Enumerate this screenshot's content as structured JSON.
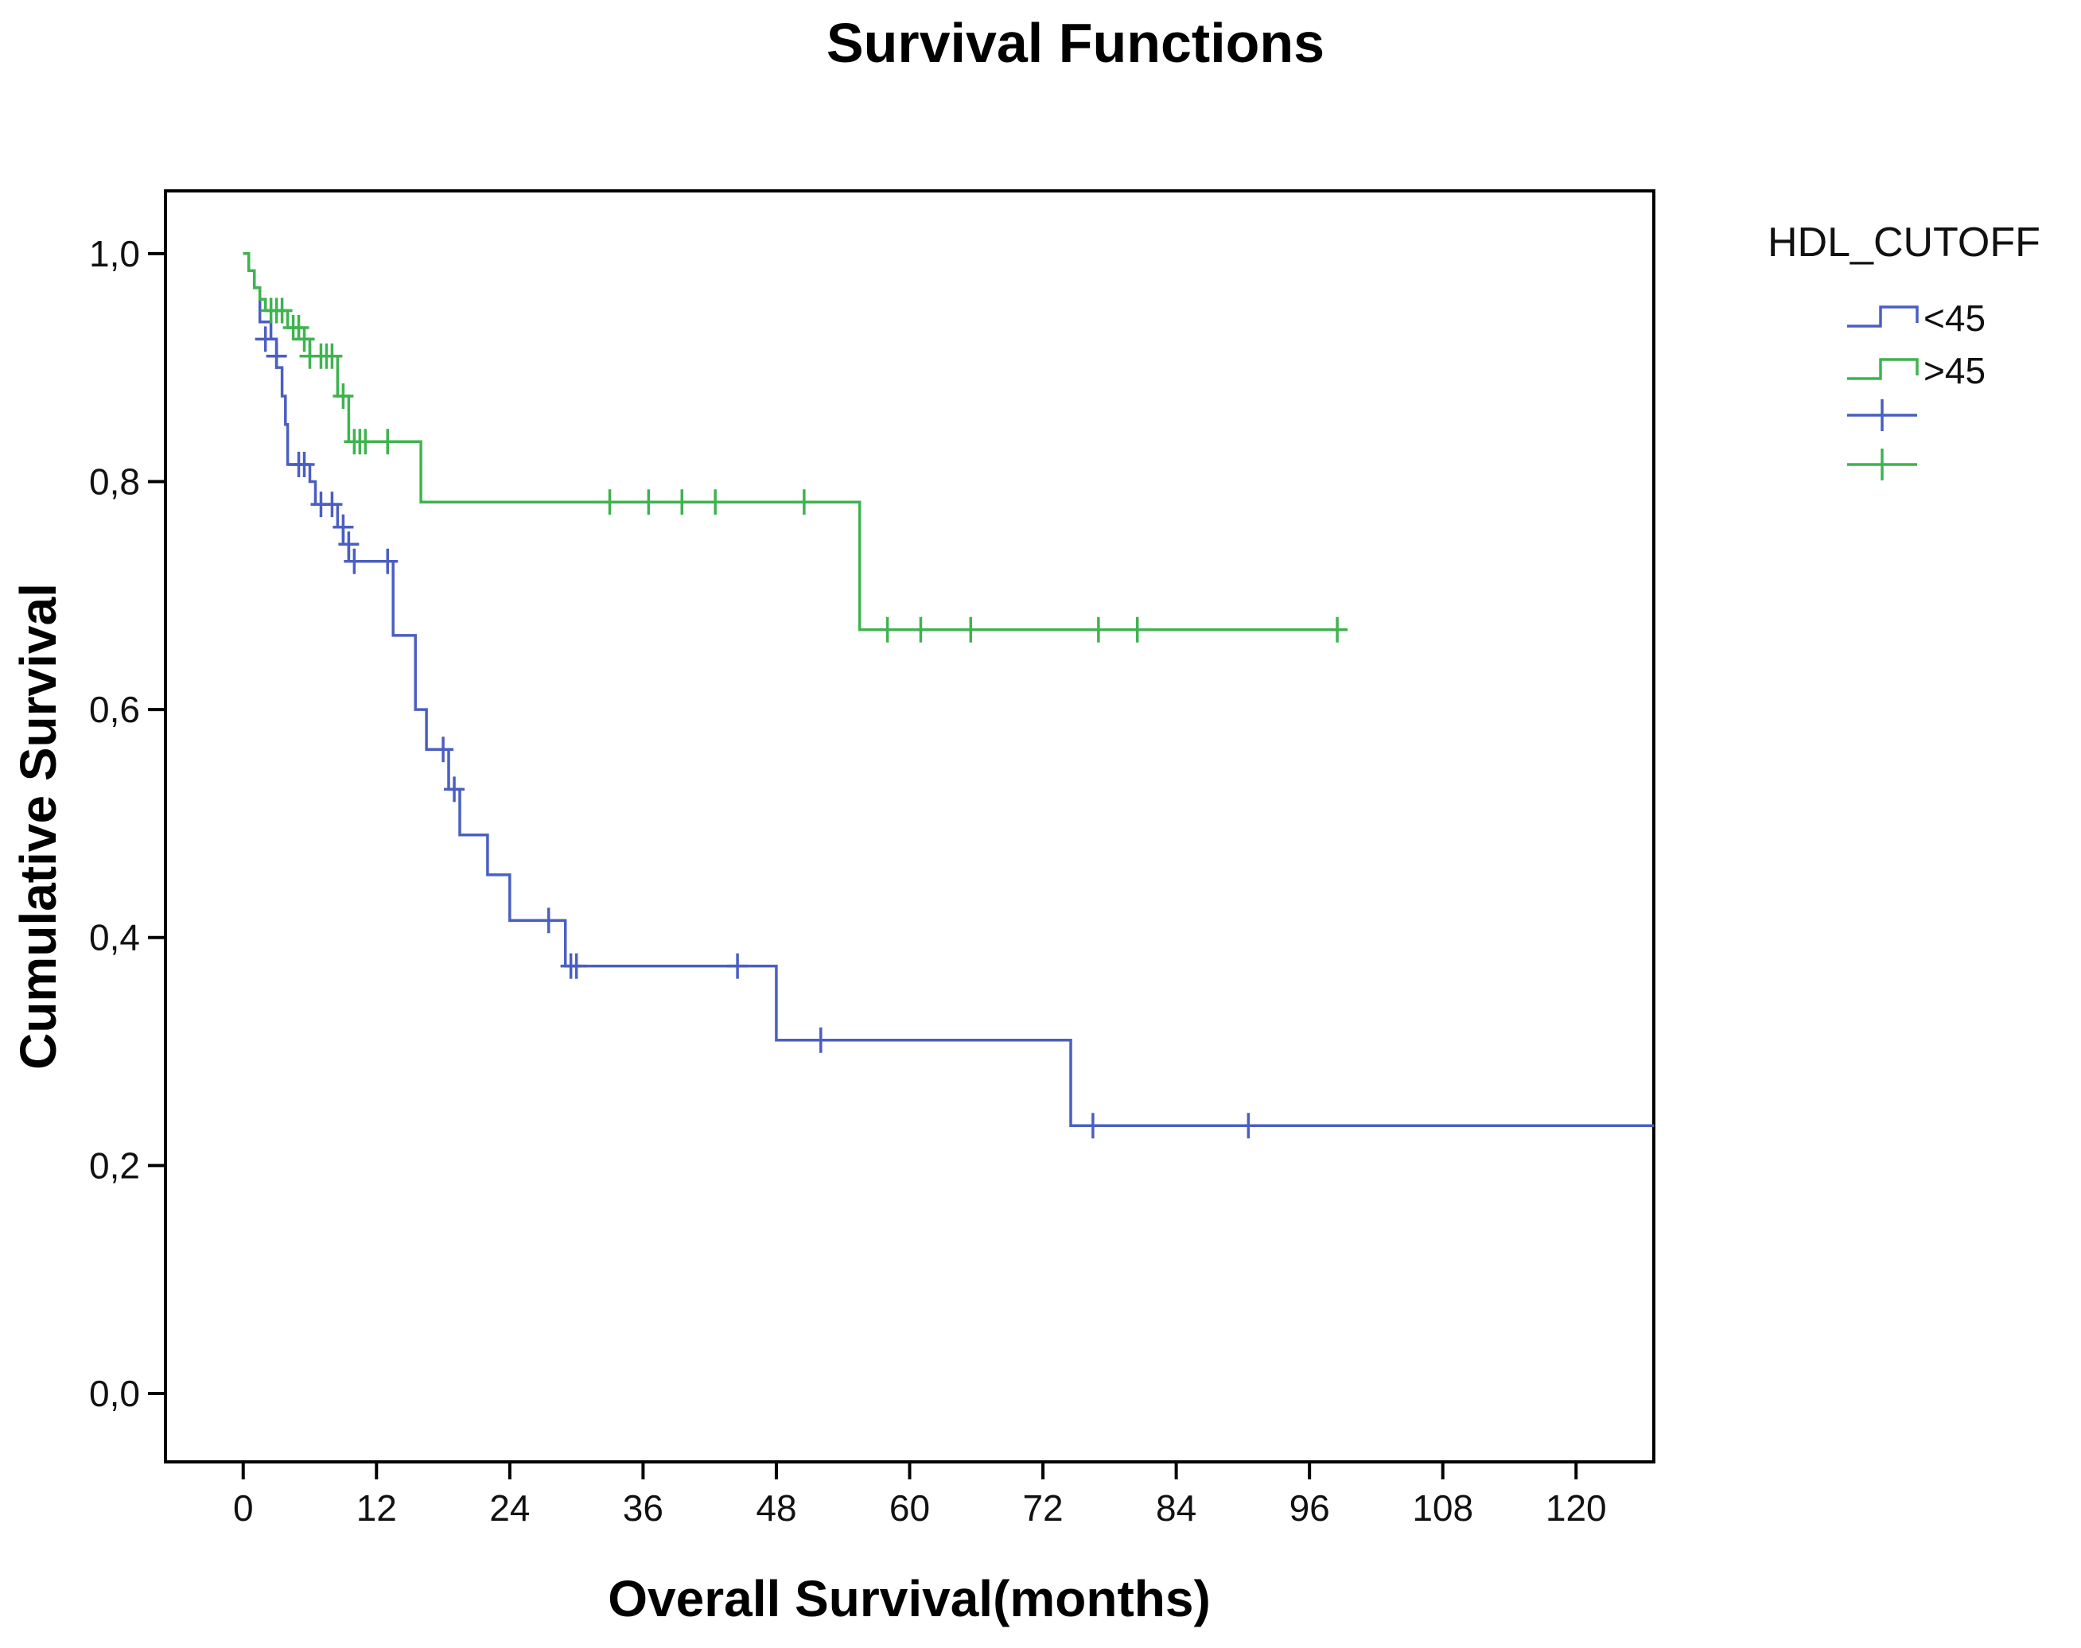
{
  "chart_data": {
    "type": "line",
    "subtype": "kaplan-meier-step",
    "title": "Survival Functions",
    "xlabel": "Overall Survival(months)",
    "ylabel": "Cumulative Survival",
    "xlim": [
      -7,
      127
    ],
    "ylim": [
      -0.06,
      1.055
    ],
    "xticks": [
      0,
      12,
      24,
      36,
      48,
      60,
      72,
      84,
      96,
      108,
      120
    ],
    "xtick_labels": [
      "0",
      "12",
      "24",
      "36",
      "48",
      "60",
      "72",
      "84",
      "96",
      "108",
      "120"
    ],
    "yticks": [
      0.0,
      0.2,
      0.4,
      0.6,
      0.8,
      1.0
    ],
    "ytick_labels": [
      "0,0",
      "0,2",
      "0,4",
      "0,6",
      "0,8",
      "1,0"
    ],
    "grid": false,
    "legend": {
      "title": "HDL_CUTOFF",
      "placement": "right",
      "entries": [
        {
          "label": "<45",
          "symbol": "step-line",
          "color": "#4a5fc1"
        },
        {
          "label": ">45",
          "symbol": "step-line",
          "color": "#3fb34f"
        },
        {
          "label": "",
          "symbol": "censor-mark",
          "color": "#4a5fc1"
        },
        {
          "label": "",
          "symbol": "censor-mark",
          "color": "#3fb34f"
        }
      ]
    },
    "series": [
      {
        "name": "<45",
        "color": "#4a5fc1",
        "steps": [
          [
            0,
            1.0
          ],
          [
            0.5,
            0.985
          ],
          [
            1.0,
            0.97
          ],
          [
            1.5,
            0.94
          ],
          [
            2.5,
            0.925
          ],
          [
            3.0,
            0.9
          ],
          [
            3.5,
            0.875
          ],
          [
            3.8,
            0.85
          ],
          [
            4.0,
            0.815
          ],
          [
            6.0,
            0.8
          ],
          [
            6.5,
            0.78
          ],
          [
            8.5,
            0.76
          ],
          [
            9.0,
            0.745
          ],
          [
            9.5,
            0.73
          ],
          [
            13.5,
            0.665
          ],
          [
            15.5,
            0.6
          ],
          [
            16.5,
            0.565
          ],
          [
            18.5,
            0.53
          ],
          [
            19.5,
            0.49
          ],
          [
            22.0,
            0.455
          ],
          [
            24.0,
            0.415
          ],
          [
            29.0,
            0.375
          ],
          [
            48.0,
            0.31
          ],
          [
            74.5,
            0.235
          ],
          [
            127,
            0.235
          ]
        ],
        "censored": [
          [
            2.0,
            0.925
          ],
          [
            3.0,
            0.91
          ],
          [
            5.0,
            0.815
          ],
          [
            5.5,
            0.815
          ],
          [
            7.0,
            0.78
          ],
          [
            8.0,
            0.78
          ],
          [
            9.0,
            0.76
          ],
          [
            9.5,
            0.745
          ],
          [
            10.0,
            0.73
          ],
          [
            13.0,
            0.73
          ],
          [
            18.0,
            0.565
          ],
          [
            19.0,
            0.53
          ],
          [
            27.5,
            0.415
          ],
          [
            29.5,
            0.375
          ],
          [
            30.0,
            0.375
          ],
          [
            44.5,
            0.375
          ],
          [
            52.0,
            0.31
          ],
          [
            76.5,
            0.235
          ],
          [
            90.5,
            0.235
          ]
        ]
      },
      {
        "name": ">45",
        "color": "#3fb34f",
        "steps": [
          [
            0,
            1.0
          ],
          [
            0.5,
            0.985
          ],
          [
            1.0,
            0.97
          ],
          [
            1.5,
            0.96
          ],
          [
            2.0,
            0.95
          ],
          [
            4.0,
            0.935
          ],
          [
            5.0,
            0.925
          ],
          [
            6.0,
            0.91
          ],
          [
            8.5,
            0.875
          ],
          [
            9.5,
            0.835
          ],
          [
            16.0,
            0.782
          ],
          [
            55.5,
            0.67
          ],
          [
            99,
            0.67
          ]
        ],
        "censored": [
          [
            2.5,
            0.95
          ],
          [
            3.0,
            0.95
          ],
          [
            3.5,
            0.95
          ],
          [
            4.5,
            0.935
          ],
          [
            5.0,
            0.935
          ],
          [
            5.5,
            0.925
          ],
          [
            6.0,
            0.91
          ],
          [
            7.0,
            0.91
          ],
          [
            7.5,
            0.91
          ],
          [
            8.0,
            0.91
          ],
          [
            9.0,
            0.875
          ],
          [
            10.0,
            0.835
          ],
          [
            10.5,
            0.835
          ],
          [
            11.0,
            0.835
          ],
          [
            13.0,
            0.835
          ],
          [
            33.0,
            0.782
          ],
          [
            36.5,
            0.782
          ],
          [
            39.5,
            0.782
          ],
          [
            42.5,
            0.782
          ],
          [
            50.5,
            0.782
          ],
          [
            58.0,
            0.67
          ],
          [
            61.0,
            0.67
          ],
          [
            65.5,
            0.67
          ],
          [
            77.0,
            0.67
          ],
          [
            80.5,
            0.67
          ],
          [
            98.5,
            0.67
          ]
        ]
      }
    ]
  }
}
